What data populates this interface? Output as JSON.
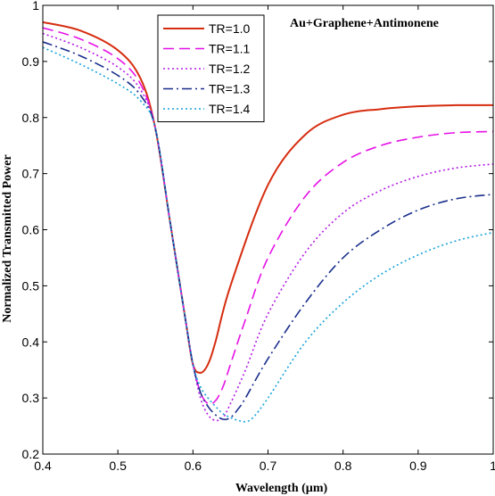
{
  "chart_data": {
    "type": "line",
    "xlabel": "Wavelength (µm)",
    "ylabel": "Normalized Transmitted Power",
    "annotation": "Au+Graphene+Antimonene",
    "xlim": [
      0.4,
      1.0
    ],
    "ylim": [
      0.2,
      1.0
    ],
    "x_ticks": [
      "0.4",
      "0.5",
      "0.6",
      "0.7",
      "0.8",
      "0.9",
      "1"
    ],
    "y_ticks": [
      "0.2",
      "0.3",
      "0.4",
      "0.5",
      "0.6",
      "0.7",
      "0.8",
      "0.9",
      "1"
    ],
    "grid": false,
    "legend_position": "top-center",
    "series": [
      {
        "name": "TR=1.0",
        "color": "#d62d10",
        "dash": "solid",
        "x": [
          0.4,
          0.45,
          0.5,
          0.53,
          0.55,
          0.57,
          0.59,
          0.6,
          0.61,
          0.62,
          0.63,
          0.65,
          0.7,
          0.75,
          0.8,
          0.85,
          0.9,
          0.95,
          1.0
        ],
        "y": [
          0.97,
          0.955,
          0.92,
          0.87,
          0.78,
          0.61,
          0.44,
          0.36,
          0.345,
          0.36,
          0.4,
          0.5,
          0.68,
          0.77,
          0.805,
          0.815,
          0.82,
          0.822,
          0.822
        ]
      },
      {
        "name": "TR=1.1",
        "color": "#e612e6",
        "dash": "dashed",
        "x": [
          0.4,
          0.45,
          0.5,
          0.53,
          0.55,
          0.57,
          0.59,
          0.6,
          0.61,
          0.62,
          0.63,
          0.64,
          0.65,
          0.67,
          0.7,
          0.75,
          0.8,
          0.85,
          0.9,
          0.95,
          1.0
        ],
        "y": [
          0.96,
          0.94,
          0.905,
          0.86,
          0.78,
          0.61,
          0.44,
          0.36,
          0.31,
          0.29,
          0.295,
          0.32,
          0.36,
          0.44,
          0.55,
          0.66,
          0.72,
          0.75,
          0.765,
          0.773,
          0.775
        ]
      },
      {
        "name": "TR=1.2",
        "color": "#b31ae6",
        "dash": "dotted",
        "x": [
          0.4,
          0.45,
          0.5,
          0.53,
          0.55,
          0.57,
          0.59,
          0.6,
          0.61,
          0.62,
          0.63,
          0.64,
          0.65,
          0.67,
          0.7,
          0.75,
          0.8,
          0.85,
          0.9,
          0.95,
          1.0
        ],
        "y": [
          0.95,
          0.925,
          0.89,
          0.85,
          0.78,
          0.61,
          0.44,
          0.36,
          0.3,
          0.27,
          0.26,
          0.265,
          0.29,
          0.35,
          0.45,
          0.56,
          0.63,
          0.67,
          0.695,
          0.71,
          0.717
        ]
      },
      {
        "name": "TR=1.3",
        "color": "#1a2f8c",
        "dash": "dashdot",
        "x": [
          0.4,
          0.45,
          0.5,
          0.53,
          0.55,
          0.57,
          0.59,
          0.6,
          0.61,
          0.62,
          0.63,
          0.64,
          0.65,
          0.66,
          0.67,
          0.7,
          0.75,
          0.8,
          0.85,
          0.9,
          0.95,
          1.0
        ],
        "y": [
          0.935,
          0.91,
          0.875,
          0.84,
          0.78,
          0.61,
          0.44,
          0.36,
          0.31,
          0.285,
          0.27,
          0.262,
          0.265,
          0.28,
          0.3,
          0.37,
          0.47,
          0.55,
          0.6,
          0.635,
          0.655,
          0.663
        ]
      },
      {
        "name": "TR=1.4",
        "color": "#1aa3d9",
        "dash": "dotted",
        "x": [
          0.4,
          0.45,
          0.5,
          0.53,
          0.55,
          0.57,
          0.59,
          0.6,
          0.61,
          0.62,
          0.63,
          0.64,
          0.65,
          0.66,
          0.67,
          0.68,
          0.7,
          0.75,
          0.8,
          0.85,
          0.9,
          0.95,
          1.0
        ],
        "y": [
          0.925,
          0.895,
          0.86,
          0.83,
          0.78,
          0.61,
          0.44,
          0.36,
          0.32,
          0.3,
          0.285,
          0.272,
          0.265,
          0.26,
          0.258,
          0.265,
          0.3,
          0.4,
          0.47,
          0.52,
          0.555,
          0.58,
          0.595
        ]
      }
    ]
  }
}
